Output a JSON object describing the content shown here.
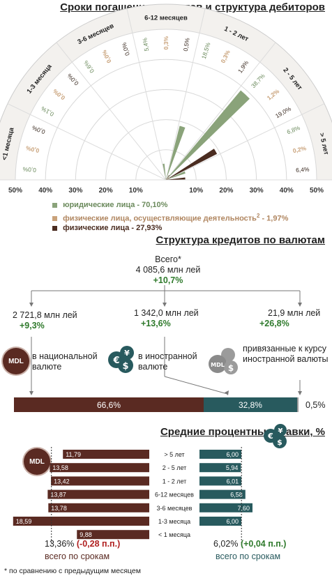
{
  "colors": {
    "legal": "#8aa37a",
    "self_employed": "#c9a27a",
    "individuals": "#4a2c20",
    "national": "#5a2a22",
    "foreign": "#285a5e",
    "pegged": "#9b9b9b",
    "green_text": "#2f7a2c",
    "red_text": "#b02020"
  },
  "section1": {
    "title": "Сроки погашения кредитов и структура дебиторов",
    "scale_left": [
      "50%",
      "40%",
      "30%",
      "20%",
      "10%"
    ],
    "scale_right": [
      "10%",
      "20%",
      "30%",
      "40%",
      "50%"
    ],
    "legend": [
      {
        "label": "юридические лица - 70,10%"
      },
      {
        "label": "физические лица, осуществляющие деятельность",
        "sup": "2",
        "suffix": " - 1,97%"
      },
      {
        "label": "физические лица - 27,93%"
      }
    ]
  },
  "chart_data": [
    {
      "type": "polar-bar",
      "title": "Сроки погашения кредитов и структура дебиторов",
      "categories": [
        "<1 месяца",
        "1-3 месяца",
        "3-6 месяцев",
        "6-12 месяцев",
        "1 - 2 лет",
        "2 - 5 лет",
        "> 5 лет"
      ],
      "series": [
        {
          "name": "юридические лица - 70,10%",
          "values": [
            0.0,
            0.1,
            0.6,
            5.4,
            18.5,
            38.7,
            6.8
          ],
          "labels": [
            "0,0%",
            "0,1%",
            "0,6%",
            "5,4%",
            "18,5%",
            "38,7%",
            "6,8%"
          ]
        },
        {
          "name": "физические лица, осуществляющие деятельность - 1,97%",
          "values": [
            0.0,
            0.0,
            0.0,
            0.3,
            0.3,
            1.2,
            0.2
          ],
          "labels": [
            "0,0%",
            "0,0%",
            "0,0%",
            "0,3%",
            "0,3%",
            "1,2%",
            "0,2%"
          ]
        },
        {
          "name": "физические лица - 27,93%",
          "values": [
            0.0,
            0.0,
            0.0,
            0.5,
            1.9,
            19.0,
            6.4
          ],
          "labels": [
            "0,0%",
            "0,0%",
            "0,0%",
            "0,5%",
            "1,9%",
            "19,0%",
            "6,4%"
          ]
        }
      ],
      "rlim": [
        0,
        50
      ]
    },
    {
      "type": "bar",
      "title": "Структура кредитов по валютам",
      "categories": [
        "в национальной валюте",
        "в иностранной валюте",
        "привязанные к курсу иностранной валюты"
      ],
      "values": [
        66.6,
        32.8,
        0.5
      ],
      "labels": [
        "66,6%",
        "32,8%",
        "0,5%"
      ]
    },
    {
      "type": "bar",
      "title": "Средние процентные ставки, %",
      "categories": [
        "> 5 лет",
        "2 - 5 лет",
        "1 - 2 лет",
        "6-12 месяцев",
        "3-6 месяцев",
        "1-3 месяца",
        "< 1 месяца"
      ],
      "series": [
        {
          "name": "MDL",
          "values": [
            11.79,
            13.58,
            13.42,
            13.87,
            13.78,
            18.59,
            9.88
          ],
          "labels": [
            "11,79",
            "13,58",
            "13,42",
            "13,87",
            "13,78",
            "18,59",
            "9,88"
          ]
        },
        {
          "name": "foreign",
          "values": [
            6.0,
            5.94,
            6.01,
            6.58,
            7.6,
            6.0,
            null
          ],
          "labels": [
            "6,00",
            "5,94",
            "6,01",
            "6,58",
            "7,60",
            "6,00",
            ""
          ]
        }
      ]
    }
  ],
  "section2": {
    "title": "Структура кредитов по валютам",
    "total_label": "Всего*",
    "total_value": "4 085,6 млн лей",
    "total_change": "+10,7%",
    "columns": [
      {
        "amount": "2 721,8 млн лей",
        "change": "+9,3%",
        "badge": "MDL",
        "desc": "в национальной валюте"
      },
      {
        "amount": "1 342,0 млн лей",
        "change": "+13,6%",
        "badge": "€$¥",
        "desc": "в иностранной валюте"
      },
      {
        "amount": "21,9 млн лей",
        "change": "+26,8%",
        "badge": "MDL",
        "desc": "привязанные к курсу иностранной валюты"
      }
    ]
  },
  "section3": {
    "title": "Средние процентные ставки, %",
    "mdl_badge": "MDL",
    "mdl_avg": "13,36%",
    "mdl_change": "(-0,28 п.п.)",
    "mdl_caption": "всего по срокам",
    "fx_avg": "6,02%",
    "fx_change": "(+0,04 п.п.)",
    "fx_caption": "всего по срокам",
    "mdl_reference": 13.36,
    "fx_reference": 6.02
  },
  "footnote": "* по сравнению с предыдущим месяцем"
}
